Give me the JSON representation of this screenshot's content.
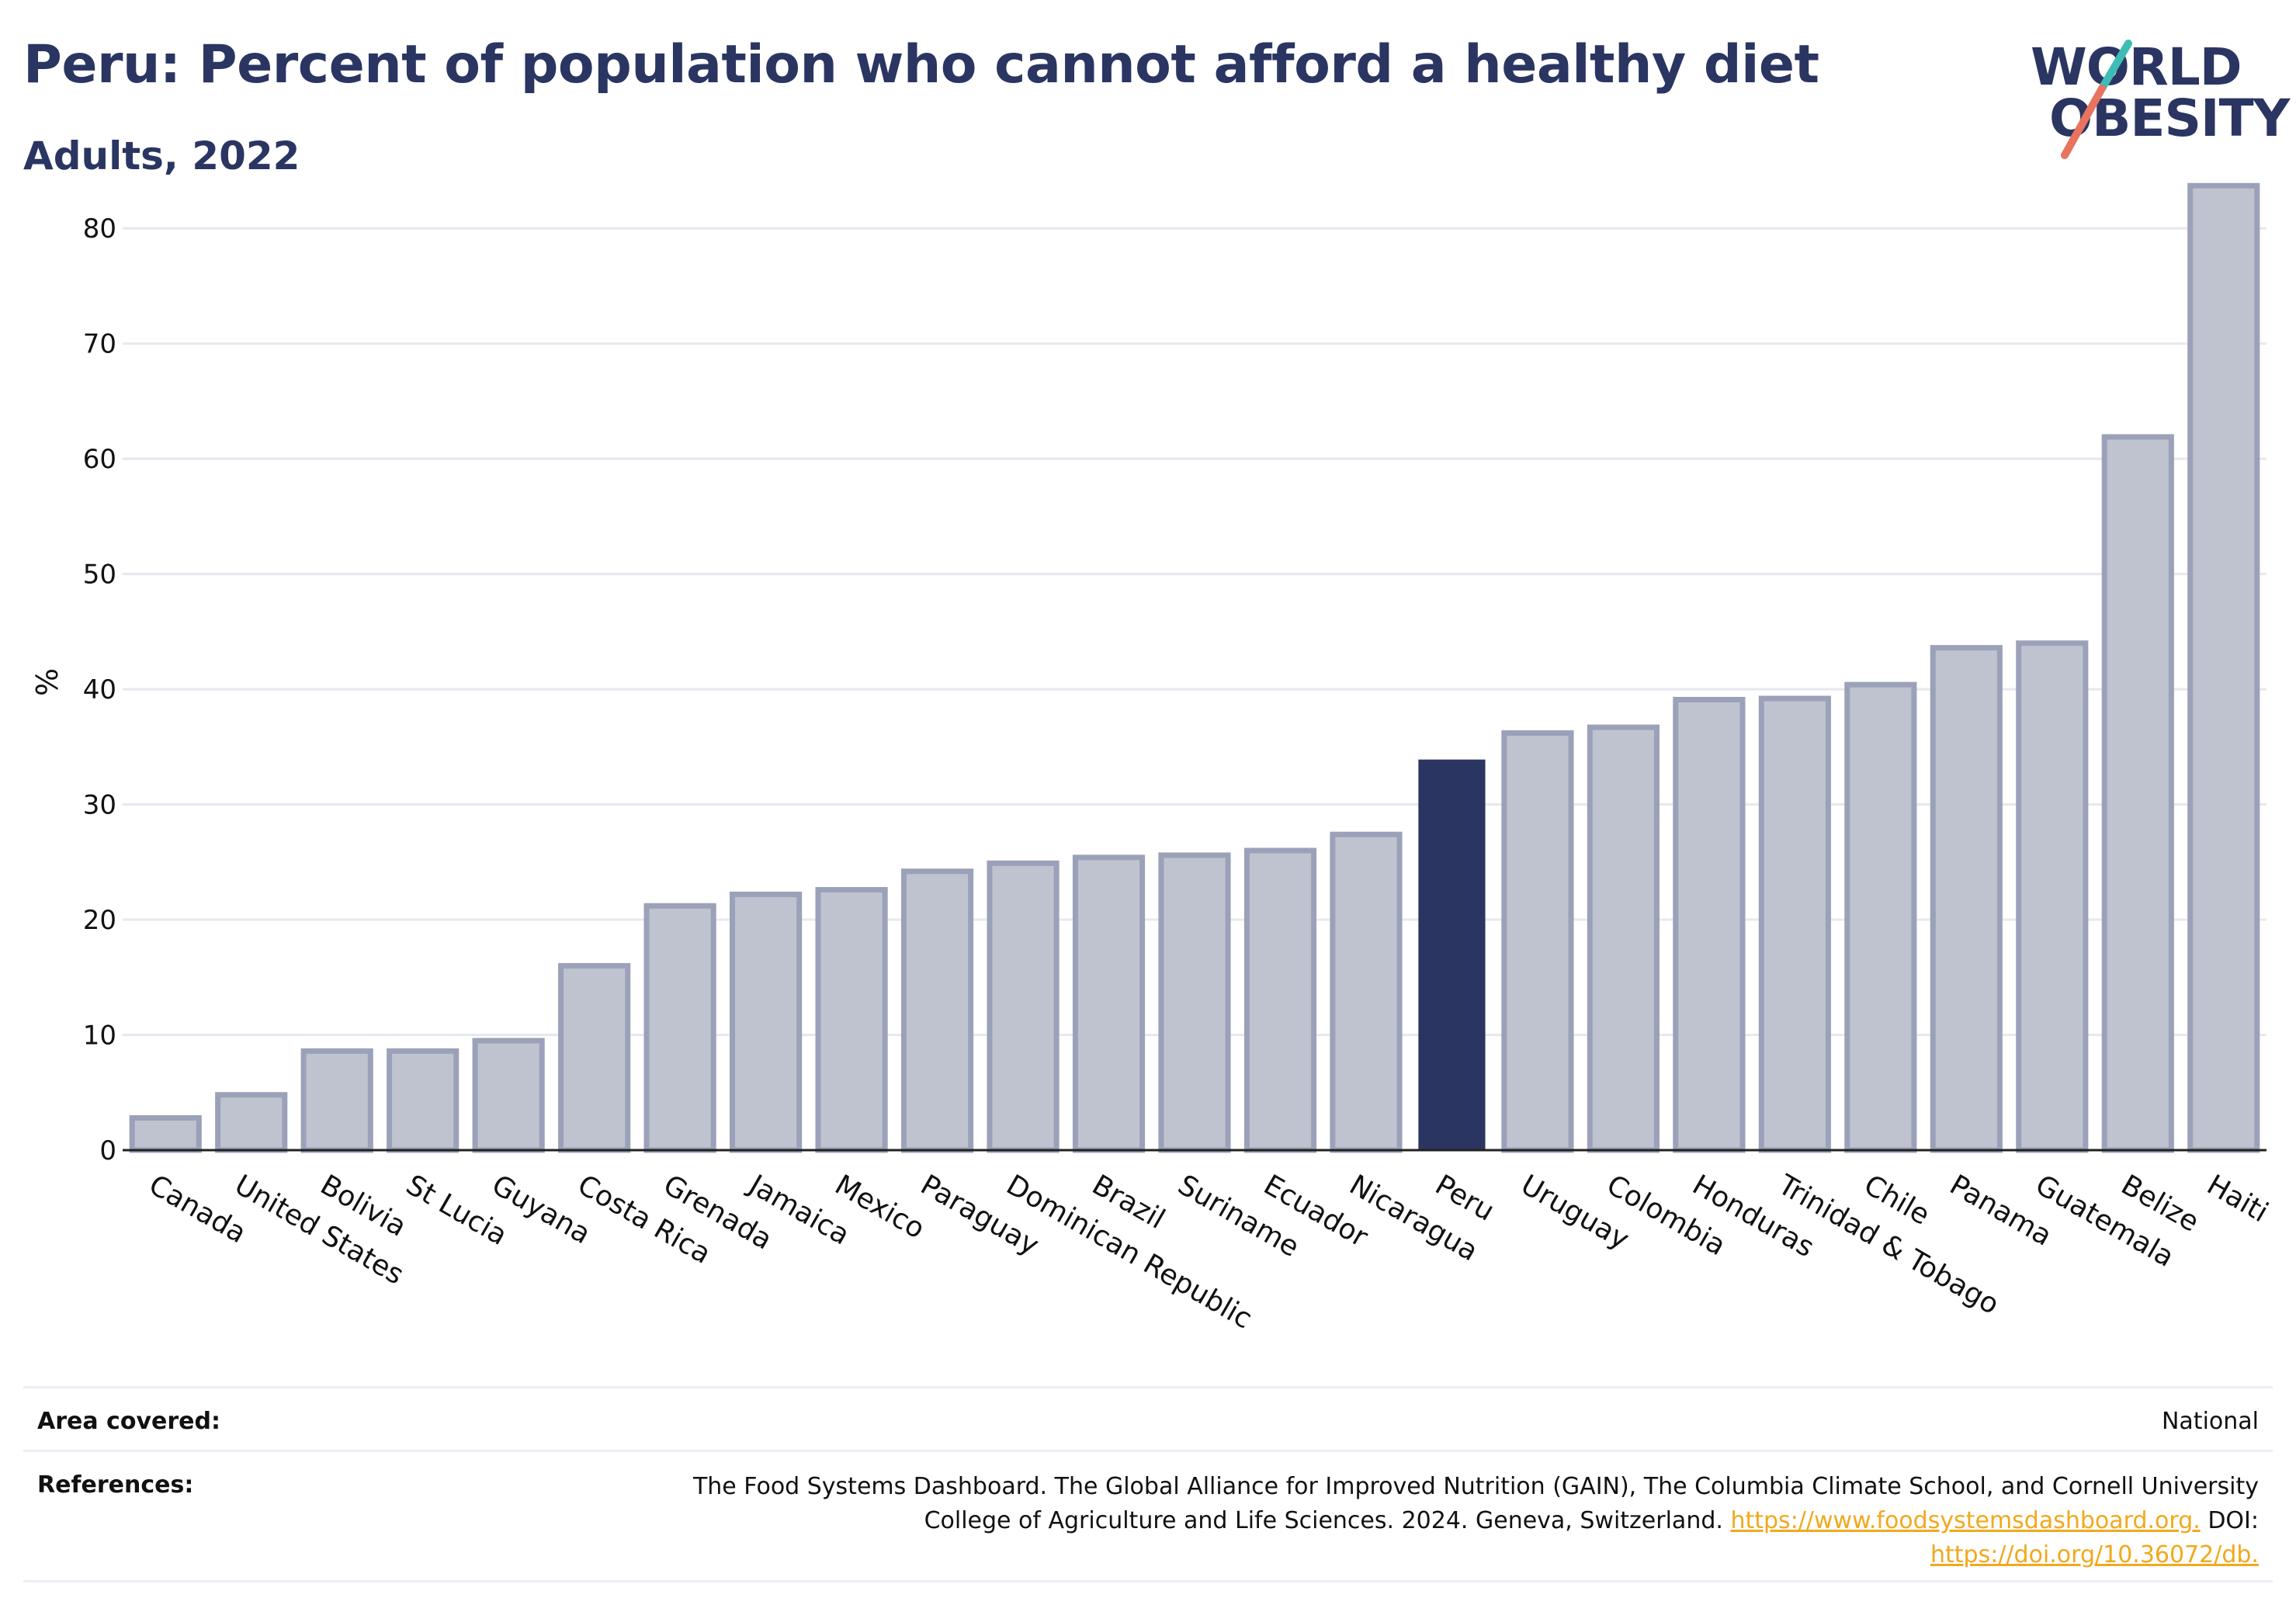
{
  "header": {
    "title": "Peru: Percent of population who cannot afford a healthy diet",
    "subtitle": "Adults, 2022"
  },
  "logo": {
    "line1": "WORLD",
    "line2": "OBESITY",
    "slash_colors": [
      "#3dbdb5",
      "#e8735f"
    ]
  },
  "colors": {
    "highlight_bar": "#2a3562",
    "other_bar_fill": "#bfc3d0",
    "other_bar_stroke": "#9ba1b8",
    "axis_text": "#111111",
    "link": "#f2a81d"
  },
  "chart_data": {
    "type": "bar",
    "ylabel": "%",
    "ylim": [
      0,
      85
    ],
    "yticks": [
      0,
      10,
      20,
      30,
      40,
      50,
      60,
      70,
      80
    ],
    "grid": true,
    "highlight": "Peru",
    "categories": [
      "Canada",
      "United States",
      "Bolivia",
      "St Lucia",
      "Guyana",
      "Costa Rica",
      "Grenada",
      "Jamaica",
      "Mexico",
      "Paraguay",
      "Dominican Republic",
      "Brazil",
      "Suriname",
      "Ecuador",
      "Nicaragua",
      "Peru",
      "Uruguay",
      "Colombia",
      "Honduras",
      "Trinidad & Tobago",
      "Chile",
      "Panama",
      "Guatemala",
      "Belize",
      "Haiti"
    ],
    "values": [
      2.8,
      4.8,
      8.6,
      8.6,
      9.5,
      16.0,
      21.2,
      22.2,
      22.6,
      24.2,
      24.9,
      25.4,
      25.6,
      26.0,
      27.4,
      33.9,
      36.2,
      36.7,
      39.1,
      39.2,
      40.4,
      43.6,
      44.0,
      61.9,
      83.7
    ]
  },
  "footer": {
    "area_label": "Area covered:",
    "area_value": "National",
    "references_label": "References:",
    "references_text_1": "The Food Systems Dashboard. The Global Alliance for Improved Nutrition (GAIN), The Columbia Climate School, and Cornell University",
    "references_text_2": "College of Agriculture and Life Sciences. 2024. Geneva, Switzerland.",
    "references_link_1": "https://www.foodsystemsdashboard.org.",
    "references_doi_label": "DOI:",
    "references_link_2": "https://doi.org/10.36072/db."
  }
}
